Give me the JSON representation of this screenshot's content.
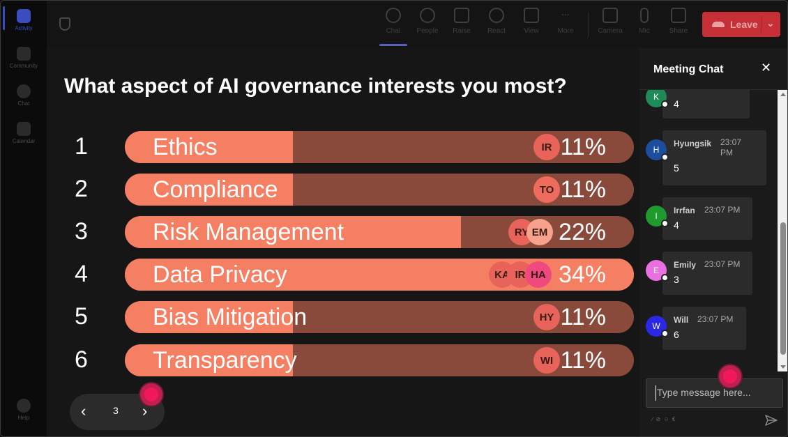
{
  "rail": {
    "items": [
      {
        "label": "Activity",
        "icon": "bell-icon"
      },
      {
        "label": "Community",
        "icon": "community-icon"
      },
      {
        "label": "Chat",
        "icon": "chat-icon"
      },
      {
        "label": "Calendar",
        "icon": "calendar-icon"
      },
      {
        "label": "Help",
        "icon": "help-icon"
      }
    ]
  },
  "toolbar": {
    "buttons": [
      {
        "label": "Chat",
        "icon": "chat-icon"
      },
      {
        "label": "People",
        "icon": "people-icon"
      },
      {
        "label": "Raise",
        "icon": "hand-icon"
      },
      {
        "label": "React",
        "icon": "smiley-icon"
      },
      {
        "label": "View",
        "icon": "grid-icon"
      },
      {
        "label": "More",
        "icon": "more-icon"
      },
      {
        "label": "Camera",
        "icon": "camera-icon"
      },
      {
        "label": "Mic",
        "icon": "mic-icon"
      },
      {
        "label": "Share",
        "icon": "share-icon"
      }
    ],
    "leave_label": "Leave"
  },
  "poll": {
    "question": "What aspect of AI governance interests you most?",
    "options": [
      {
        "num": "1",
        "label": "Ethics",
        "pct": "11%",
        "value": 11,
        "voters": [
          "IR"
        ]
      },
      {
        "num": "2",
        "label": "Compliance",
        "pct": "11%",
        "value": 11,
        "voters": [
          "TO"
        ]
      },
      {
        "num": "3",
        "label": "Risk Management",
        "pct": "22%",
        "value": 22,
        "voters": [
          "RY",
          "EM"
        ]
      },
      {
        "num": "4",
        "label": "Data Privacy",
        "pct": "34%",
        "value": 34,
        "voters": [
          "KA",
          "IR",
          "HA"
        ]
      },
      {
        "num": "5",
        "label": "Bias Mitigation",
        "pct": "11%",
        "value": 11,
        "voters": [
          "HY"
        ]
      },
      {
        "num": "6",
        "label": "Transparency",
        "pct": "11%",
        "value": 11,
        "voters": [
          "WI"
        ]
      }
    ],
    "colors": {
      "fill": "#f47f63",
      "track": "#8a4a3b",
      "leading_track": "#f58a6d"
    }
  },
  "pager": {
    "prev": "‹",
    "page": "3",
    "next": "›"
  },
  "chat": {
    "title": "Meeting Chat",
    "close": "✕",
    "messages": [
      {
        "initial": "K",
        "name": "",
        "time": "",
        "text": "4",
        "color": "#1e8a57"
      },
      {
        "initial": "H",
        "name": "Hyungsik",
        "time": "23:07 PM",
        "text": "5",
        "color": "#1d4e9e"
      },
      {
        "initial": "I",
        "name": "Irrfan",
        "time": "23:07 PM",
        "text": "4",
        "color": "#1f9a2e"
      },
      {
        "initial": "E",
        "name": "Emily",
        "time": "23:07 PM",
        "text": "3",
        "color": "#ea70e2"
      },
      {
        "initial": "W",
        "name": "Will",
        "time": "23:07 PM",
        "text": "6",
        "color": "#2a27e6"
      }
    ],
    "input_placeholder": "Type message here..."
  }
}
